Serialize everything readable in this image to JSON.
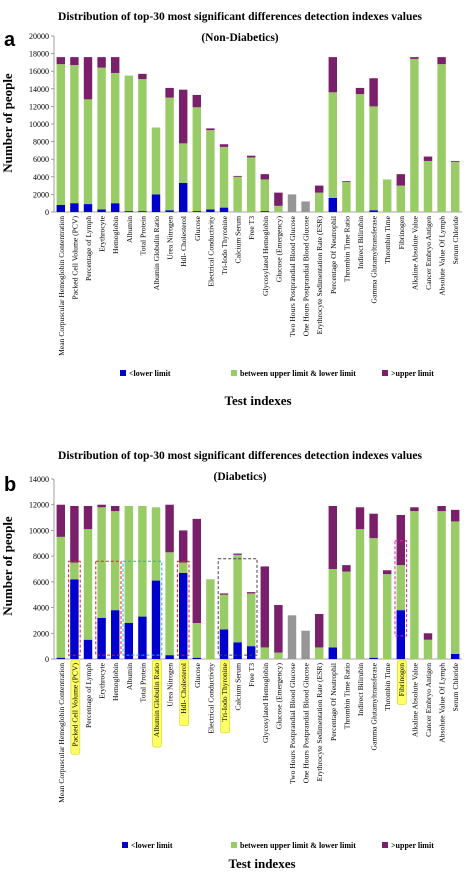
{
  "chart_data": [
    {
      "type": "bar",
      "stacked": true,
      "panel_label": "a",
      "title": "Distribution of top-30 most significant differences detection indexes values",
      "subtitle": "(Non-Diabetics)",
      "xlabel": "Test   indexes",
      "ylabel": "Number  of  people",
      "ylim": [
        0,
        20000
      ],
      "yticks": [
        "0",
        "2000",
        "4000",
        "6000",
        "8000",
        "10000",
        "12000",
        "14000",
        "16000",
        "18000",
        "20000"
      ],
      "grid": false,
      "legend_position": "bottom",
      "categories": [
        "Mean Corpuscular Hemoglobin Contentration",
        "Packed Cell Volume (PCV)",
        "Percentage of Lymph",
        "Erythrocyte",
        "Hemoglobin",
        "Albumin",
        "Total Protein",
        "Albumin Globulin Ratio",
        "Urea Nitrogen",
        "Hdl- Cholesterol",
        "Glucose",
        "Electrical Conductivity",
        "Tri-Iodo Thyronine",
        "Calcium Serum",
        "Free T3",
        "Glycosylated Hemoglobin",
        "Glucose (Emergency)",
        "Two Hours Postprandial Blood Glucose",
        "One Hours Postprandial Blood Glucose",
        "Erythrocyte Sedimentation Rate (ESR)",
        "Percentage Of Neutrophil",
        "Thrombin Time Ratio",
        "Indirect Bilirubin",
        "Gamma Glutamyltransferase",
        "Thrombin Time",
        "Fibrinogen",
        "Alkaline Absolute Value",
        "Cancer Embryo Antigen",
        "Absolute Value Of Lymph",
        "Serum Chloride"
      ],
      "series": [
        {
          "name": "<lower limit",
          "color": "#0000cc",
          "values": [
            800,
            1000,
            900,
            300,
            1000,
            100,
            100,
            2000,
            200,
            3300,
            100,
            300,
            500,
            0,
            0,
            100,
            0,
            0,
            0,
            0,
            1600,
            0,
            0,
            200,
            0,
            0,
            0,
            0,
            0,
            0
          ]
        },
        {
          "name": "between upper limit & lower limit",
          "color": "#99cc66",
          "values": [
            16000,
            15700,
            11900,
            16100,
            14800,
            15400,
            15000,
            7600,
            12800,
            4500,
            11800,
            9000,
            6900,
            4000,
            6200,
            3600,
            700,
            0,
            0,
            2200,
            12000,
            3400,
            13400,
            11800,
            3700,
            3000,
            17400,
            5800,
            16800,
            5700
          ]
        },
        {
          "name": ">upper limit",
          "color": "#7a1f6a",
          "values": [
            800,
            900,
            4800,
            1200,
            1800,
            0,
            600,
            0,
            1100,
            6100,
            1400,
            200,
            300,
            100,
            200,
            600,
            1500,
            0,
            0,
            800,
            4000,
            100,
            700,
            3200,
            0,
            1300,
            200,
            500,
            800,
            100
          ]
        },
        {
          "name": "",
          "color": "#969696",
          "values": [
            0,
            0,
            0,
            0,
            0,
            0,
            0,
            0,
            0,
            0,
            0,
            0,
            0,
            0,
            0,
            0,
            0,
            2000,
            1200,
            0,
            0,
            0,
            0,
            0,
            0,
            0,
            0,
            0,
            0,
            0
          ]
        }
      ]
    },
    {
      "type": "bar",
      "stacked": true,
      "panel_label": "b",
      "title": "Distribution of top-30 most significant differences detection indexes values",
      "subtitle": "(Diabetics)",
      "xlabel": "Test   indexes",
      "ylabel": "Number  of  people",
      "ylim": [
        0,
        14000
      ],
      "yticks": [
        "0",
        "2000",
        "4000",
        "6000",
        "8000",
        "10000",
        "12000",
        "14000"
      ],
      "grid": false,
      "legend_position": "bottom",
      "highlight_color": "#ffff66",
      "highlighted_categories": [
        "Packed Cell Volume (PCV)",
        "Albumin Globulin Ratio",
        "Hdl- Cholesterol",
        "Tri-Iodo Thyronine",
        "Fibrinogen"
      ],
      "categories": [
        "Mean Corpuscular Hemoglobin Contentration",
        "Packed Cell Volume (PCV)",
        "Percentage of Lymph",
        "Erythrocyte",
        "Hemoglobin",
        "Albumin",
        "Total Protein",
        "Albumin Globulin Ratio",
        "Urea Nitrogen",
        "Hdl- Cholesterol",
        "Glucose",
        "Electrical Conductivity",
        "Tri-Iodo Thyronine",
        "Calcium Serum",
        "Free T3",
        "Glycosylated Hemoglobin",
        "Glucose (Emergency)",
        "Two Hours Postprandial Blood Glucose",
        "One Hours Postprandial Blood Glucose",
        "Erythrocyte Sedimentation Rate (ESR)",
        "Percentage Of Neutrophil",
        "Thrombin Time Ratio",
        "Indirect Bilirubin",
        "Gamma Glutamyltransferase",
        "Thrombin Time",
        "Fibrinogen",
        "Alkaline Absolute Value",
        "Cancer Embryo Antigen",
        "Absolute Value Of Lymph",
        "Serum Chloride"
      ],
      "series": [
        {
          "name": "<lower limit",
          "color": "#0000cc",
          "values": [
            100,
            6200,
            1500,
            3200,
            3800,
            2800,
            3300,
            6100,
            300,
            6700,
            100,
            0,
            2300,
            1300,
            1000,
            0,
            0,
            0,
            0,
            0,
            900,
            0,
            0,
            100,
            0,
            3800,
            0,
            0,
            0,
            400
          ]
        },
        {
          "name": "between upper limit & lower limit",
          "color": "#99cc66",
          "values": [
            9400,
            1300,
            8600,
            8600,
            7700,
            9100,
            8600,
            5700,
            8000,
            800,
            2700,
            6200,
            2700,
            6800,
            4100,
            900,
            500,
            0,
            0,
            900,
            6100,
            6800,
            10100,
            9300,
            6600,
            3500,
            11500,
            1500,
            11500,
            10300
          ]
        },
        {
          "name": ">upper limit",
          "color": "#7a1f6a",
          "values": [
            2500,
            4400,
            1800,
            200,
            400,
            0,
            0,
            0,
            3700,
            2500,
            8100,
            0,
            100,
            100,
            100,
            6300,
            3700,
            0,
            0,
            2600,
            4900,
            500,
            1700,
            1900,
            300,
            3900,
            300,
            500,
            400,
            900
          ]
        },
        {
          "name": "",
          "color": "#969696",
          "values": [
            0,
            0,
            0,
            0,
            0,
            0,
            0,
            0,
            0,
            0,
            0,
            0,
            0,
            0,
            0,
            0,
            0,
            3400,
            2200,
            0,
            0,
            0,
            0,
            0,
            0,
            0,
            0,
            0,
            0,
            0
          ]
        }
      ]
    }
  ]
}
